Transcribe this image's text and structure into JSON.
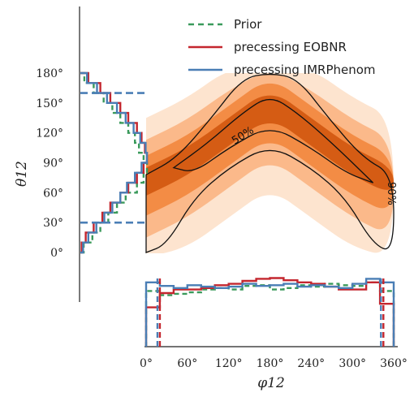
{
  "colors": {
    "prior": "#3a9a5b",
    "eobnr": "#c4262e",
    "imrphenom": "#4a7eb5",
    "density_light": "#fde4cf",
    "density_mid": "#f79a55",
    "density_dark": "#c2420a",
    "contour": "#111111"
  },
  "legend": {
    "placement": "top-right",
    "entries": [
      {
        "label": "Prior",
        "style": "dashed",
        "color_key": "prior"
      },
      {
        "label": "precessing EOBNR",
        "style": "solid",
        "color_key": "eobnr"
      },
      {
        "label": "precessing IMRPhenom",
        "style": "solid",
        "color_key": "imrphenom"
      }
    ]
  },
  "chart_data": {
    "type": "heatmap",
    "xlabel": "φ12",
    "ylabel": "θ12",
    "xlim": [
      0,
      360
    ],
    "ylim": [
      0,
      180
    ],
    "xticks": [
      "0°",
      "60°",
      "120°",
      "180°",
      "240°",
      "300°",
      "360°"
    ],
    "yticks": [
      "0°",
      "30°",
      "60°",
      "90°",
      "120°",
      "150°",
      "180°"
    ],
    "contour_labels": [
      "50%",
      "90%"
    ],
    "ridge": {
      "description_free": true,
      "phi": [
        0,
        60,
        120,
        180,
        240,
        300,
        360
      ],
      "theta_center": [
        75,
        95,
        125,
        155,
        125,
        95,
        75
      ]
    },
    "contours": [
      {
        "label": "50%",
        "upper": [
          [
            40,
            85
          ],
          [
            90,
            110
          ],
          [
            140,
            140
          ],
          [
            180,
            158
          ],
          [
            220,
            140
          ],
          [
            270,
            110
          ],
          [
            330,
            70
          ]
        ],
        "lower": [
          [
            330,
            70
          ],
          [
            290,
            80
          ],
          [
            240,
            105
          ],
          [
            180,
            128
          ],
          [
            120,
            105
          ],
          [
            70,
            80
          ],
          [
            40,
            85
          ]
        ]
      },
      {
        "label": "90%",
        "upper": [
          [
            0,
            78
          ],
          [
            45,
            95
          ],
          [
            95,
            135
          ],
          [
            140,
            175
          ],
          [
            180,
            180
          ],
          [
            220,
            175
          ],
          [
            265,
            135
          ],
          [
            315,
            95
          ],
          [
            360,
            78
          ]
        ],
        "lower": [
          [
            360,
            0
          ],
          [
            330,
            8
          ],
          [
            290,
            55
          ],
          [
            240,
            85
          ],
          [
            180,
            108
          ],
          [
            120,
            85
          ],
          [
            70,
            55
          ],
          [
            30,
            8
          ],
          [
            0,
            0
          ]
        ]
      }
    ],
    "theta_marginal": {
      "bins": [
        0,
        10,
        20,
        30,
        40,
        50,
        60,
        70,
        80,
        90,
        100,
        110,
        120,
        130,
        140,
        150,
        160,
        170,
        180
      ],
      "series": [
        {
          "name": "Prior",
          "values": [
            0.05,
            0.18,
            0.3,
            0.42,
            0.55,
            0.68,
            0.85,
            0.95,
            1.0,
            0.95,
            0.88,
            0.82,
            0.72,
            0.6,
            0.48,
            0.35,
            0.2,
            0.06
          ]
        },
        {
          "name": "precessing EOBNR",
          "values": [
            0.02,
            0.08,
            0.2,
            0.33,
            0.45,
            0.6,
            0.72,
            0.85,
            0.95,
            1.0,
            0.97,
            0.92,
            0.85,
            0.72,
            0.6,
            0.45,
            0.3,
            0.12
          ]
        },
        {
          "name": "precessing IMRPhenom",
          "values": [
            0.04,
            0.12,
            0.24,
            0.36,
            0.48,
            0.6,
            0.7,
            0.82,
            0.92,
            1.0,
            0.98,
            0.9,
            0.8,
            0.68,
            0.55,
            0.4,
            0.25,
            0.1
          ]
        }
      ],
      "interval": [
        30,
        160
      ]
    },
    "phi_marginal": {
      "bins": [
        0,
        20,
        40,
        60,
        80,
        100,
        120,
        140,
        160,
        180,
        200,
        220,
        240,
        260,
        280,
        300,
        320,
        340,
        360
      ],
      "series": [
        {
          "name": "Prior",
          "values": [
            0.78,
            0.72,
            0.74,
            0.76,
            0.8,
            0.82,
            0.8,
            0.85,
            0.86,
            0.8,
            0.82,
            0.86,
            0.84,
            0.88,
            0.86,
            0.85,
            0.9,
            0.78
          ]
        },
        {
          "name": "precessing EOBNR",
          "values": [
            0.55,
            0.75,
            0.8,
            0.8,
            0.82,
            0.86,
            0.88,
            0.92,
            0.95,
            0.96,
            0.93,
            0.9,
            0.88,
            0.84,
            0.8,
            0.8,
            0.9,
            0.6
          ]
        },
        {
          "name": "precessing IMRPhenom",
          "values": [
            0.9,
            0.85,
            0.82,
            0.86,
            0.84,
            0.82,
            0.84,
            0.88,
            0.85,
            0.86,
            0.88,
            0.84,
            0.86,
            0.84,
            0.82,
            0.88,
            0.95,
            0.9
          ]
        }
      ],
      "interval": [
        20,
        345
      ]
    }
  }
}
